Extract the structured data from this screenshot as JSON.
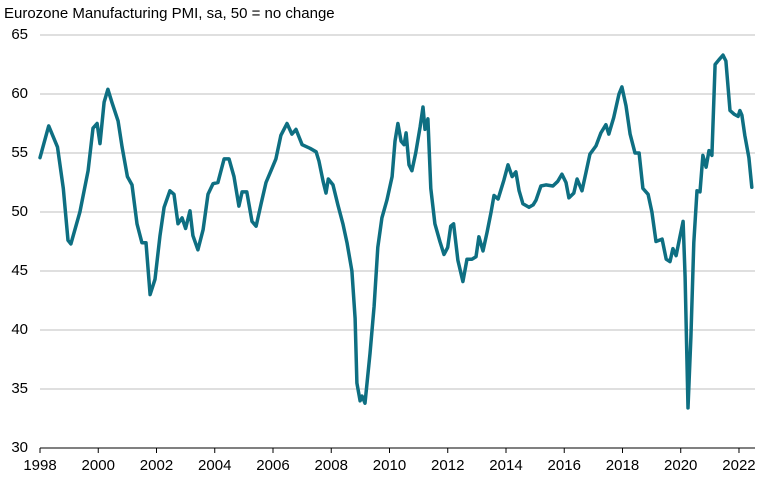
{
  "chart_data": {
    "type": "line",
    "title": "Eurozone Manufacturing PMI, sa, 50 = no change",
    "x": [
      1998.0,
      1998.3,
      1998.6,
      1998.8,
      1998.96,
      1999.06,
      1999.37,
      1999.65,
      1999.82,
      1999.96,
      2000.06,
      2000.2,
      2000.33,
      2000.47,
      2000.68,
      2000.82,
      2001.0,
      2001.16,
      2001.33,
      2001.5,
      2001.64,
      2001.78,
      2001.95,
      2002.12,
      2002.26,
      2002.46,
      2002.6,
      2002.74,
      2002.88,
      2003.0,
      2003.15,
      2003.25,
      2003.42,
      2003.6,
      2003.77,
      2003.94,
      2004.11,
      2004.32,
      2004.49,
      2004.66,
      2004.83,
      2004.94,
      2005.1,
      2005.28,
      2005.42,
      2005.59,
      2005.76,
      2005.93,
      2006.1,
      2006.27,
      2006.48,
      2006.65,
      2006.79,
      2007.0,
      2007.27,
      2007.48,
      2007.58,
      2007.72,
      2007.82,
      2007.9,
      2008.06,
      2008.23,
      2008.4,
      2008.54,
      2008.71,
      2008.82,
      2008.88,
      2008.99,
      2009.06,
      2009.16,
      2009.33,
      2009.47,
      2009.6,
      2009.74,
      2009.91,
      2010.09,
      2010.19,
      2010.29,
      2010.4,
      2010.5,
      2010.57,
      2010.67,
      2010.77,
      2010.9,
      2011.05,
      2011.15,
      2011.22,
      2011.32,
      2011.42,
      2011.56,
      2011.73,
      2011.87,
      2012.0,
      2012.1,
      2012.2,
      2012.35,
      2012.52,
      2012.66,
      2012.83,
      2012.97,
      2013.07,
      2013.21,
      2013.35,
      2013.49,
      2013.59,
      2013.73,
      2013.93,
      2014.07,
      2014.21,
      2014.34,
      2014.45,
      2014.58,
      2014.79,
      2014.93,
      2015.03,
      2015.2,
      2015.37,
      2015.61,
      2015.78,
      2015.92,
      2016.06,
      2016.16,
      2016.33,
      2016.44,
      2016.61,
      2016.75,
      2016.88,
      2017.09,
      2017.26,
      2017.43,
      2017.53,
      2017.7,
      2017.88,
      2017.98,
      2018.12,
      2018.26,
      2018.43,
      2018.57,
      2018.7,
      2018.88,
      2019.01,
      2019.15,
      2019.36,
      2019.5,
      2019.63,
      2019.73,
      2019.84,
      2019.97,
      2020.08,
      2020.15,
      2020.25,
      2020.35,
      2020.45,
      2020.56,
      2020.66,
      2020.76,
      2020.87,
      2020.97,
      2021.07,
      2021.18,
      2021.31,
      2021.45,
      2021.55,
      2021.69,
      2021.83,
      2021.97,
      2022.03,
      2022.1,
      2022.2,
      2022.34,
      2022.44
    ],
    "series": [
      {
        "color": "#0e6f82",
        "values": [
          54.6,
          57.3,
          55.5,
          52,
          47.6,
          47.3,
          50,
          53.5,
          57.1,
          57.5,
          55.8,
          59.3,
          60.4,
          59.3,
          57.7,
          55.5,
          53,
          52.3,
          49,
          47.4,
          47.4,
          43,
          44.3,
          48,
          50.4,
          51.8,
          51.5,
          49,
          49.5,
          48.6,
          50.1,
          48,
          46.8,
          48.5,
          51.5,
          52.4,
          52.5,
          54.5,
          54.5,
          53,
          50.5,
          51.7,
          51.7,
          49.2,
          48.8,
          50.7,
          52.5,
          53.5,
          54.5,
          56.5,
          57.5,
          56.6,
          57,
          55.7,
          55.4,
          55.1,
          54.3,
          52.6,
          51.6,
          52.8,
          52.3,
          50.6,
          49,
          47.4,
          45,
          41,
          35.5,
          34,
          34.4,
          33.8,
          38,
          42,
          47,
          49.5,
          51,
          53,
          56,
          57.5,
          56,
          55.7,
          56.7,
          54,
          53.5,
          55,
          57.2,
          58.9,
          57,
          57.9,
          52,
          49,
          47.5,
          46.4,
          47,
          48.8,
          49,
          45.9,
          44.1,
          46,
          46,
          46.2,
          47.9,
          46.7,
          48.3,
          50,
          51.4,
          51.1,
          52.7,
          54,
          53,
          53.4,
          51.8,
          50.7,
          50.4,
          50.6,
          51,
          52.2,
          52.3,
          52.2,
          52.6,
          53.2,
          52.5,
          51.2,
          51.6,
          52.8,
          51.8,
          53.4,
          54.9,
          55.6,
          56.7,
          57.4,
          56.6,
          58,
          60,
          60.6,
          59,
          56.6,
          55,
          55,
          52,
          51.5,
          50,
          47.5,
          47.7,
          46,
          45.8,
          46.9,
          46.3,
          47.9,
          49.2,
          44.5,
          33.4,
          39.4,
          47.4,
          51.8,
          51.7,
          54.8,
          53.8,
          55.2,
          54.8,
          62.5,
          62.9,
          63.3,
          62.8,
          58.6,
          58.3,
          58.1,
          58.6,
          58.2,
          56.5,
          54.6,
          52.1
        ]
      }
    ],
    "xlim": [
      1998,
      2022.55
    ],
    "xticks": [
      1998,
      2000,
      2002,
      2004,
      2006,
      2008,
      2010,
      2012,
      2014,
      2016,
      2018,
      2020,
      2022
    ],
    "ylim": [
      30,
      65
    ],
    "yticks": [
      30,
      35,
      40,
      45,
      50,
      55,
      60,
      65
    ],
    "grid": true
  }
}
